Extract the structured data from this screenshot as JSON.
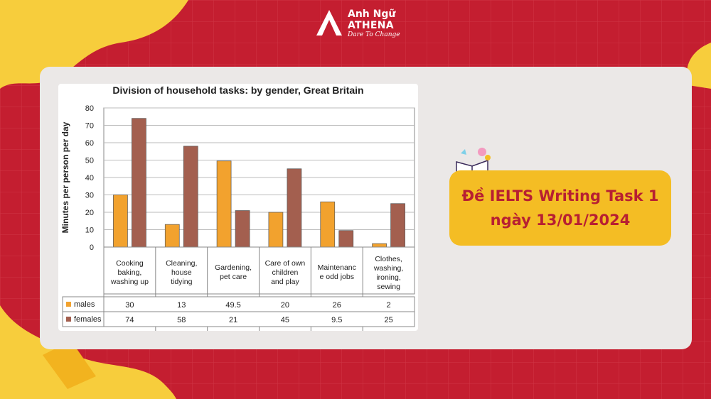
{
  "brand": {
    "name_line1": "Anh Ngữ",
    "name_line2": "ATHENA",
    "tagline": "Dare To Change"
  },
  "badge": {
    "line1": "Đề IELTS Writing Task 1",
    "line2": "ngày 13/01/2024"
  },
  "colors": {
    "background_red": "#c41e30",
    "accent_yellow": "#f4bd24",
    "card_grey": "#ebe8e7",
    "males_bar": "#f2a22e",
    "females_bar": "#a35f4f"
  },
  "chart_data": {
    "type": "bar",
    "title": "Division of household tasks: by gender, Great Britain",
    "ylabel": "Minutes per person per day",
    "xlabel": "",
    "ylim": [
      0,
      80
    ],
    "yticks": [
      0,
      10,
      20,
      30,
      40,
      50,
      60,
      70,
      80
    ],
    "grid": true,
    "categories": [
      [
        "Cooking",
        "baking,",
        "washing up"
      ],
      [
        "Cleaning,",
        "house",
        "tidying"
      ],
      [
        "Gardening,",
        "pet care"
      ],
      [
        "Care of own",
        "children",
        "and play"
      ],
      [
        "Maintenanc",
        "e odd jobs"
      ],
      [
        "Clothes,",
        "washing,",
        "ironing,",
        "sewing"
      ]
    ],
    "series": [
      {
        "name": "males",
        "values": [
          30,
          13,
          49.5,
          20,
          26,
          2
        ]
      },
      {
        "name": "females",
        "values": [
          74,
          58,
          21,
          45,
          9.5,
          25
        ]
      }
    ],
    "table_labels": [
      "30",
      "13",
      "49.5",
      "20",
      "26",
      "2",
      "74",
      "58",
      "21",
      "45",
      "9.5",
      "25"
    ]
  }
}
